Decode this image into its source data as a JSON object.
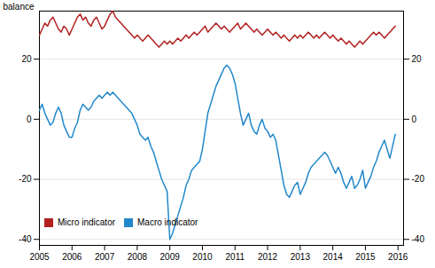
{
  "chart_data": {
    "type": "line",
    "ylabel": "balance",
    "xlim": [
      2005.0,
      2016.17
    ],
    "ylim": [
      -42,
      36
    ],
    "yticks": [
      -40,
      -20,
      0,
      20
    ],
    "y2lim": [
      -42,
      36
    ],
    "y2ticks": [
      -40,
      -20,
      0,
      20
    ],
    "xticks": [
      2005,
      2006,
      2007,
      2008,
      2009,
      2010,
      2011,
      2012,
      2013,
      2014,
      2015,
      2016
    ],
    "grid": true,
    "legend": "lower left",
    "series": [
      {
        "name": "Micro indicator",
        "color": "#b22020",
        "x": [
          2005.0,
          2005.083,
          2005.167,
          2005.25,
          2005.333,
          2005.417,
          2005.5,
          2005.583,
          2005.667,
          2005.75,
          2005.833,
          2005.917,
          2006.0,
          2006.083,
          2006.167,
          2006.25,
          2006.333,
          2006.417,
          2006.5,
          2006.583,
          2006.667,
          2006.75,
          2006.833,
          2006.917,
          2007.0,
          2007.083,
          2007.167,
          2007.25,
          2007.333,
          2007.417,
          2007.5,
          2007.583,
          2007.667,
          2007.75,
          2007.833,
          2007.917,
          2008.0,
          2008.083,
          2008.167,
          2008.25,
          2008.333,
          2008.417,
          2008.5,
          2008.583,
          2008.667,
          2008.75,
          2008.833,
          2008.917,
          2009.0,
          2009.083,
          2009.167,
          2009.25,
          2009.333,
          2009.417,
          2009.5,
          2009.583,
          2009.667,
          2009.75,
          2009.833,
          2009.917,
          2010.0,
          2010.083,
          2010.167,
          2010.25,
          2010.333,
          2010.417,
          2010.5,
          2010.583,
          2010.667,
          2010.75,
          2010.833,
          2010.917,
          2011.0,
          2011.083,
          2011.167,
          2011.25,
          2011.333,
          2011.417,
          2011.5,
          2011.583,
          2011.667,
          2011.75,
          2011.833,
          2011.917,
          2012.0,
          2012.083,
          2012.167,
          2012.25,
          2012.333,
          2012.417,
          2012.5,
          2012.583,
          2012.667,
          2012.75,
          2012.833,
          2012.917,
          2013.0,
          2013.083,
          2013.167,
          2013.25,
          2013.333,
          2013.417,
          2013.5,
          2013.583,
          2013.667,
          2013.75,
          2013.833,
          2013.917,
          2014.0,
          2014.083,
          2014.167,
          2014.25,
          2014.333,
          2014.417,
          2014.5,
          2014.583,
          2014.667,
          2014.75,
          2014.833,
          2014.917,
          2015.0,
          2015.083,
          2015.167,
          2015.25,
          2015.333,
          2015.417,
          2015.5,
          2015.583,
          2015.667,
          2015.75,
          2015.833,
          2015.917
        ],
        "values": [
          28,
          30,
          32,
          31,
          33,
          34,
          32,
          30,
          29,
          31,
          30,
          28,
          30,
          32,
          34,
          35,
          33,
          34,
          32,
          31,
          33,
          34,
          32,
          30,
          31,
          33,
          35,
          36,
          34,
          33,
          32,
          31,
          30,
          29,
          28,
          27,
          28,
          27,
          26,
          27,
          28,
          27,
          26,
          25,
          24,
          25,
          26,
          25,
          26,
          25,
          26,
          27,
          26,
          27,
          28,
          27,
          28,
          29,
          28,
          29,
          30,
          31,
          29,
          30,
          31,
          32,
          31,
          30,
          31,
          30,
          29,
          30,
          31,
          32,
          30,
          31,
          32,
          31,
          30,
          29,
          30,
          29,
          28,
          29,
          30,
          29,
          28,
          29,
          28,
          27,
          28,
          27,
          26,
          27,
          28,
          27,
          28,
          27,
          28,
          29,
          28,
          27,
          28,
          27,
          28,
          29,
          28,
          27,
          28,
          27,
          26,
          27,
          26,
          25,
          26,
          25,
          24,
          25,
          26,
          25,
          26,
          27,
          28,
          29,
          28,
          29,
          28,
          27,
          28,
          29,
          30,
          31
        ]
      },
      {
        "name": "Macro indicator",
        "color": "#2288cc",
        "x": [
          2005.0,
          2005.083,
          2005.167,
          2005.25,
          2005.333,
          2005.417,
          2005.5,
          2005.583,
          2005.667,
          2005.75,
          2005.833,
          2005.917,
          2006.0,
          2006.083,
          2006.167,
          2006.25,
          2006.333,
          2006.417,
          2006.5,
          2006.583,
          2006.667,
          2006.75,
          2006.833,
          2006.917,
          2007.0,
          2007.083,
          2007.167,
          2007.25,
          2007.333,
          2007.417,
          2007.5,
          2007.583,
          2007.667,
          2007.75,
          2007.833,
          2007.917,
          2008.0,
          2008.083,
          2008.167,
          2008.25,
          2008.333,
          2008.417,
          2008.5,
          2008.583,
          2008.667,
          2008.75,
          2008.833,
          2008.917,
          2009.0,
          2009.083,
          2009.25,
          2009.417,
          2009.5,
          2009.583,
          2009.667,
          2009.75,
          2009.833,
          2009.917,
          2010.0,
          2010.083,
          2010.167,
          2010.25,
          2010.333,
          2010.417,
          2010.5,
          2010.583,
          2010.667,
          2010.75,
          2010.833,
          2010.917,
          2011.0,
          2011.083,
          2011.167,
          2011.25,
          2011.333,
          2011.417,
          2011.5,
          2011.583,
          2011.667,
          2011.75,
          2011.833,
          2011.917,
          2012.0,
          2012.083,
          2012.167,
          2012.25,
          2012.333,
          2012.417,
          2012.5,
          2012.583,
          2012.667,
          2012.75,
          2012.833,
          2012.917,
          2013.0,
          2013.083,
          2013.167,
          2013.25,
          2013.333,
          2013.417,
          2013.5,
          2013.583,
          2013.667,
          2013.75,
          2013.833,
          2013.917,
          2014.0,
          2014.083,
          2014.167,
          2014.25,
          2014.333,
          2014.417,
          2014.5,
          2014.583,
          2014.667,
          2014.75,
          2014.833,
          2014.917,
          2015.0,
          2015.083,
          2015.167,
          2015.25,
          2015.333,
          2015.417,
          2015.5,
          2015.583,
          2015.667,
          2015.75,
          2015.833,
          2015.917
        ],
        "values": [
          3,
          5,
          2,
          0,
          -2,
          -1,
          2,
          4,
          2,
          -2,
          -4,
          -6,
          -6,
          -3,
          -1,
          3,
          5,
          4,
          3,
          4,
          6,
          7,
          8,
          7,
          8,
          9,
          8,
          9,
          8,
          7,
          6,
          5,
          4,
          3,
          2,
          0,
          -2,
          -5,
          -6,
          -7,
          -6,
          -9,
          -11,
          -14,
          -17,
          -20,
          -22,
          -24,
          -40,
          -38,
          -32,
          -26,
          -22,
          -20,
          -17,
          -16,
          -15,
          -14,
          -10,
          -4,
          2,
          5,
          8,
          11,
          13,
          15,
          17,
          18,
          17,
          15,
          12,
          7,
          2,
          -2,
          0,
          2,
          -2,
          -4,
          -5,
          -2,
          0,
          -3,
          -4,
          -6,
          -5,
          -7,
          -12,
          -17,
          -22,
          -25,
          -26,
          -24,
          -22,
          -21,
          -25,
          -23,
          -21,
          -18,
          -16,
          -15,
          -14,
          -13,
          -12,
          -11,
          -12,
          -14,
          -16,
          -18,
          -16,
          -18,
          -21,
          -23,
          -21,
          -19,
          -23,
          -22,
          -20,
          -17,
          -23,
          -21,
          -19,
          -16,
          -14,
          -11,
          -9,
          -7,
          -10,
          -13,
          -9,
          -5
        ]
      }
    ]
  }
}
